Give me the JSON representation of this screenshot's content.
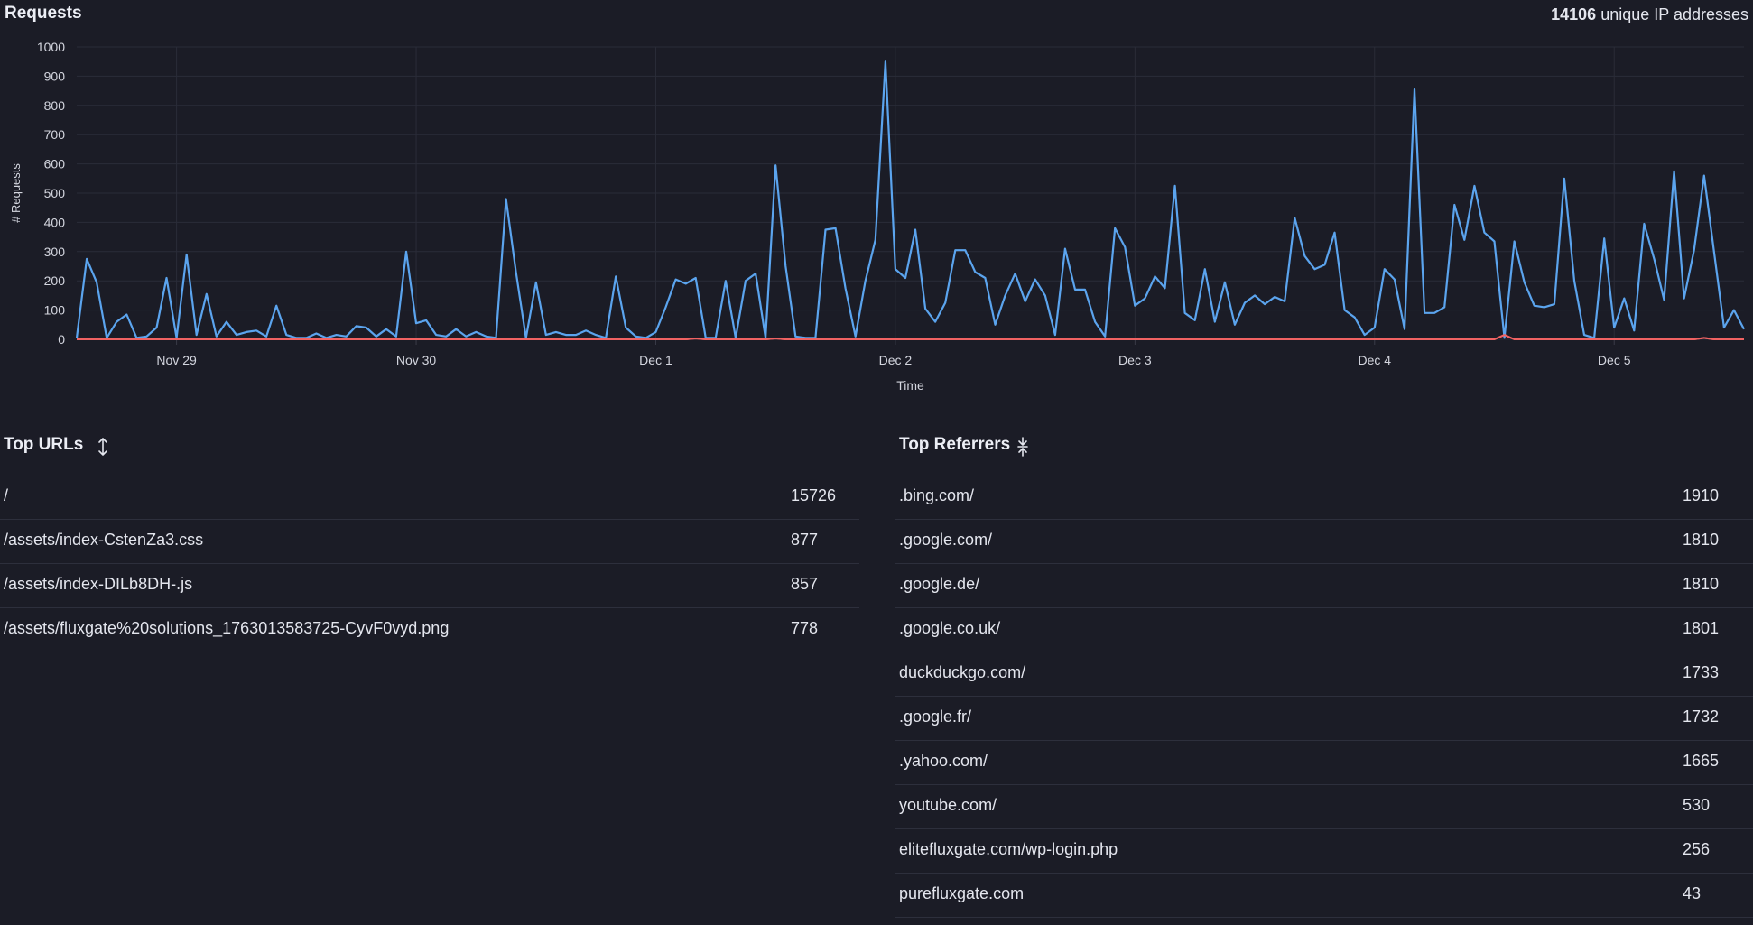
{
  "header": {
    "title": "Requests",
    "unique_count": "14106",
    "unique_label": "unique IP addresses"
  },
  "colors": {
    "background": "#1b1c26",
    "requests_line": "#5ba4ee",
    "error_line": "#f06262",
    "grid": "#2a2c38"
  },
  "chart_data": {
    "type": "line",
    "title": "",
    "xlabel": "Time",
    "ylabel": "# Requests",
    "ylim": [
      0,
      1000
    ],
    "yticks": [
      0,
      100,
      200,
      300,
      400,
      500,
      600,
      700,
      800,
      900,
      1000
    ],
    "xlim": [
      "2025-11-28T14:00",
      "2025-12-05T13:00"
    ],
    "xticks": [
      {
        "date": "2025-11-29",
        "label": "Nov 29"
      },
      {
        "date": "2025-11-30",
        "label": "Nov 30"
      },
      {
        "date": "2025-12-01",
        "label": "Dec 1"
      },
      {
        "date": "2025-12-02",
        "label": "Dec 2"
      },
      {
        "date": "2025-12-03",
        "label": "Dec 3"
      },
      {
        "date": "2025-12-04",
        "label": "Dec 4"
      },
      {
        "date": "2025-12-05",
        "label": "Dec 5"
      }
    ],
    "grid": true,
    "x_step_hours": 1,
    "series": [
      {
        "values": [
          5,
          275,
          195,
          5,
          60,
          85,
          5,
          10,
          40,
          210,
          5,
          290,
          15,
          155,
          10,
          60,
          15,
          25,
          30,
          10,
          115,
          15,
          5,
          5,
          20,
          5,
          15,
          10,
          45,
          40,
          10,
          35,
          10,
          300,
          55,
          65,
          15,
          10,
          35,
          10,
          25,
          10,
          5,
          480,
          230,
          5,
          195,
          15,
          25,
          15,
          15,
          30,
          15,
          5,
          215,
          40,
          10,
          5,
          25,
          110,
          205,
          190,
          210,
          5,
          5,
          200,
          5,
          200,
          225,
          5,
          595,
          250,
          10,
          5,
          5,
          375,
          380,
          175,
          10,
          200,
          340,
          950,
          240,
          210,
          375,
          105,
          60,
          125,
          305,
          305,
          230,
          210,
          50,
          150,
          225,
          130,
          205,
          150,
          15,
          310,
          170,
          170,
          60,
          10,
          380,
          315,
          115,
          140,
          215,
          175,
          525,
          90,
          65,
          240,
          60,
          195,
          50,
          125,
          150,
          120,
          145,
          130,
          415,
          285,
          240,
          255,
          365,
          100,
          75,
          15,
          40,
          240,
          205,
          35,
          855,
          90,
          90,
          110,
          460,
          340,
          525,
          365,
          335,
          5,
          335,
          195,
          115,
          110,
          120,
          550,
          200,
          15,
          5,
          345,
          40,
          140,
          30,
          395,
          275,
          135,
          575,
          140,
          305,
          560,
          300,
          40,
          100,
          35
        ]
      },
      {
        "values": [
          0,
          0,
          0,
          0,
          0,
          0,
          0,
          0,
          0,
          0,
          0,
          0,
          0,
          0,
          0,
          0,
          0,
          0,
          0,
          0,
          0,
          0,
          0,
          0,
          0,
          0,
          0,
          0,
          0,
          0,
          0,
          0,
          0,
          0,
          0,
          0,
          0,
          0,
          0,
          0,
          0,
          0,
          0,
          0,
          0,
          0,
          0,
          0,
          0,
          0,
          0,
          0,
          0,
          0,
          0,
          0,
          0,
          0,
          0,
          0,
          0,
          0,
          3,
          0,
          0,
          0,
          0,
          0,
          0,
          0,
          3,
          0,
          0,
          0,
          0,
          0,
          0,
          0,
          0,
          0,
          0,
          0,
          0,
          0,
          0,
          0,
          0,
          0,
          0,
          0,
          0,
          0,
          0,
          0,
          0,
          0,
          0,
          0,
          0,
          0,
          0,
          0,
          0,
          0,
          0,
          0,
          0,
          0,
          0,
          0,
          0,
          0,
          0,
          0,
          0,
          0,
          0,
          0,
          0,
          0,
          0,
          0,
          0,
          0,
          0,
          0,
          0,
          0,
          0,
          0,
          0,
          0,
          0,
          0,
          0,
          0,
          0,
          0,
          0,
          0,
          0,
          0,
          0,
          15,
          0,
          0,
          0,
          0,
          0,
          0,
          0,
          0,
          0,
          0,
          0,
          0,
          0,
          0,
          0,
          0,
          0,
          0,
          0,
          5,
          0,
          0,
          0,
          0,
          0
        ]
      }
    ]
  },
  "top_urls": {
    "title": "Top URLs",
    "sort_icon": "sort-expand-icon",
    "rows": [
      {
        "label": "/",
        "value": "15726"
      },
      {
        "label": "/assets/index-CstenZa3.css",
        "value": "877"
      },
      {
        "label": "/assets/index-DILb8DH-.js",
        "value": "857"
      },
      {
        "label": "/assets/fluxgate%20solutions_1763013583725-CyvF0vyd.png",
        "value": "778"
      }
    ]
  },
  "top_referrers": {
    "title": "Top Referrers",
    "sort_icon": "sort-collapse-icon",
    "rows": [
      {
        "label": ".bing.com/",
        "value": "1910"
      },
      {
        "label": ".google.com/",
        "value": "1810"
      },
      {
        "label": ".google.de/",
        "value": "1810"
      },
      {
        "label": ".google.co.uk/",
        "value": "1801"
      },
      {
        "label": "duckduckgo.com/",
        "value": "1733"
      },
      {
        "label": ".google.fr/",
        "value": "1732"
      },
      {
        "label": ".yahoo.com/",
        "value": "1665"
      },
      {
        "label": "youtube.com/",
        "value": "530"
      },
      {
        "label": "elitefluxgate.com/wp-login.php",
        "value": "256"
      },
      {
        "label": "purefluxgate.com",
        "value": "43"
      }
    ]
  }
}
